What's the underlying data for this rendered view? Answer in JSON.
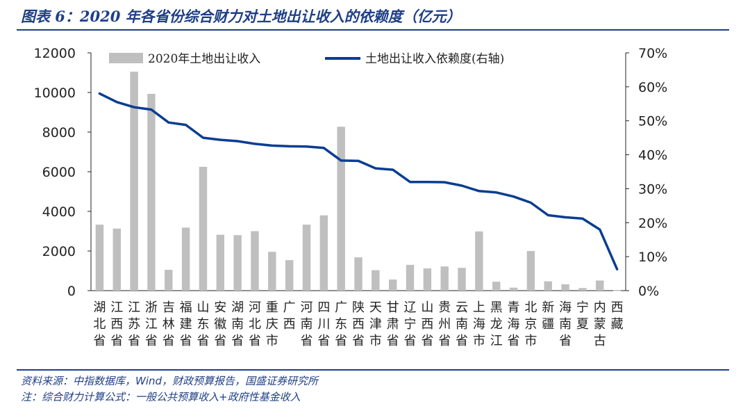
{
  "title": "图表 6：2020 年各省份综合财力对土地出让收入的依赖度（亿元）",
  "notes": {
    "source": "资料来源：中指数据库，Wind，财政预算报告，国盛证券研究所",
    "formula": "注：综合财力计算公式：一般公共预算收入+政府性基金收入"
  },
  "colors": {
    "bar": "#bfbfbf",
    "line": "#0a3d91",
    "accent": "#1f3f86"
  },
  "chart_data": {
    "type": "bar",
    "categories": [
      "湖北省",
      "江西省",
      "江苏省",
      "浙江省",
      "吉林省",
      "福建省",
      "山东省",
      "安徽省",
      "湖南省",
      "河北省",
      "重庆市",
      "广西",
      "河南省",
      "四川省",
      "广东省",
      "陕西省",
      "天津市",
      "甘肃省",
      "辽宁省",
      "山西省",
      "贵州省",
      "云南省",
      "上海市",
      "黑龙江省",
      "青海省",
      "北京市",
      "新疆",
      "海南省",
      "宁夏",
      "内蒙古",
      "西藏"
    ],
    "category_lines": [
      [
        "湖",
        "北",
        "省"
      ],
      [
        "江",
        "西",
        "省"
      ],
      [
        "江",
        "苏",
        "省"
      ],
      [
        "浙",
        "江",
        "省"
      ],
      [
        "吉",
        "林",
        "省"
      ],
      [
        "福",
        "建",
        "省"
      ],
      [
        "山",
        "东",
        "省"
      ],
      [
        "安",
        "徽",
        "省"
      ],
      [
        "湖",
        "南",
        "省"
      ],
      [
        "河",
        "北",
        "省"
      ],
      [
        "重",
        "庆",
        "市"
      ],
      [
        "广",
        "西",
        ""
      ],
      [
        "河",
        "南",
        "省"
      ],
      [
        "四",
        "川",
        "省"
      ],
      [
        "广",
        "东",
        "省"
      ],
      [
        "陕",
        "西",
        "省"
      ],
      [
        "天",
        "津",
        "市"
      ],
      [
        "甘",
        "肃",
        "省"
      ],
      [
        "辽",
        "宁",
        "省"
      ],
      [
        "山",
        "西",
        "省"
      ],
      [
        "贵",
        "州",
        "省"
      ],
      [
        "云",
        "南",
        "省"
      ],
      [
        "上",
        "海",
        "市"
      ],
      [
        "黑",
        "龙",
        "江"
      ],
      [
        "青",
        "海",
        "省"
      ],
      [
        "北",
        "京",
        "市"
      ],
      [
        "新",
        "疆",
        ""
      ],
      [
        "海",
        "南",
        "省"
      ],
      [
        "宁",
        "夏",
        ""
      ],
      [
        "内",
        "蒙",
        "古"
      ],
      [
        "西",
        "藏",
        ""
      ]
    ],
    "series": [
      {
        "name": "2020年土地出让收入",
        "type": "bar",
        "axis": "left",
        "values": [
          3330,
          3130,
          11050,
          9930,
          1050,
          3180,
          6250,
          2820,
          2800,
          3000,
          1960,
          1540,
          3330,
          3800,
          8270,
          1680,
          1030,
          560,
          1300,
          1120,
          1220,
          1150,
          2990,
          450,
          150,
          2000,
          470,
          320,
          130,
          510,
          10
        ]
      },
      {
        "name": "土地出让收入依赖度(右轴)",
        "type": "line",
        "axis": "right",
        "values": [
          0.58,
          0.555,
          0.54,
          0.533,
          0.495,
          0.488,
          0.45,
          0.444,
          0.44,
          0.432,
          0.427,
          0.425,
          0.424,
          0.42,
          0.383,
          0.382,
          0.36,
          0.356,
          0.32,
          0.32,
          0.319,
          0.309,
          0.293,
          0.289,
          0.277,
          0.259,
          0.222,
          0.216,
          0.212,
          0.18,
          0.063
        ]
      }
    ],
    "yleft": {
      "min": 0,
      "max": 12000,
      "ticks": [
        "0",
        "2000",
        "4000",
        "6000",
        "8000",
        "10000",
        "12000"
      ]
    },
    "yright": {
      "min": 0,
      "max": 0.7,
      "ticks": [
        "0%",
        "10%",
        "20%",
        "30%",
        "40%",
        "50%",
        "60%",
        "70%"
      ]
    },
    "legend": "top",
    "grid": false
  }
}
